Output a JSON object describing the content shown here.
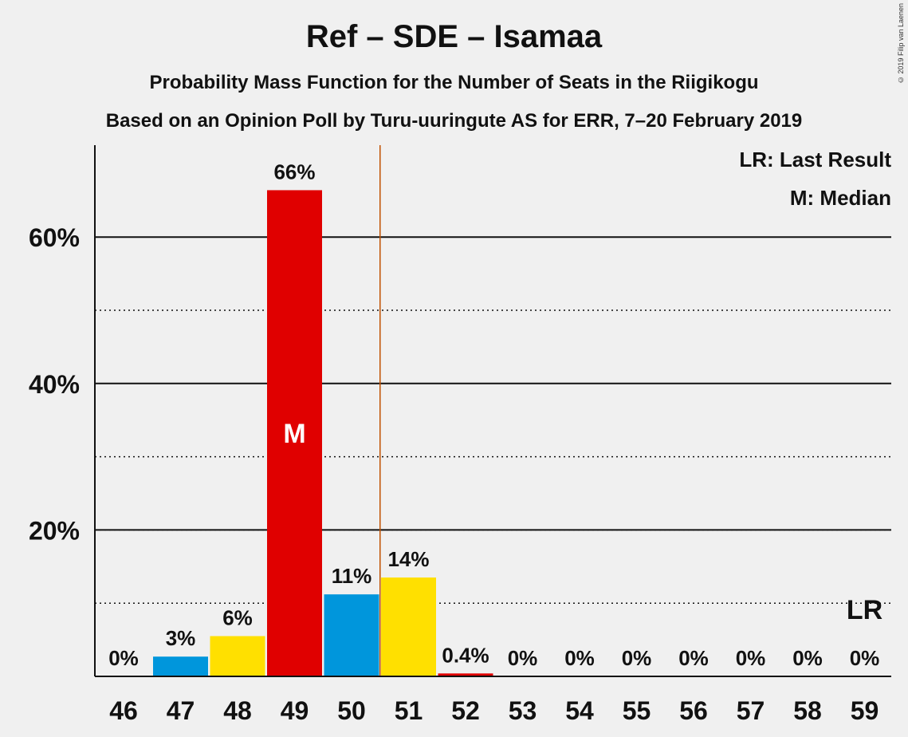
{
  "title": "Ref – SDE – Isamaa",
  "subtitle1": "Probability Mass Function for the Number of Seats in the Riigikogu",
  "subtitle2": "Based on an Opinion Poll by Turu-uuringute AS for ERR, 7–20 February 2019",
  "copyright": "© 2019 Filip van Laenen",
  "legend": {
    "lr": "LR: Last Result",
    "m": "M: Median"
  },
  "marker_labels": {
    "median": "M",
    "last_result": "LR"
  },
  "colors": {
    "red": "#e00000",
    "blue": "#0096dc",
    "yellow": "#ffe000",
    "majority_line": "#c05000"
  },
  "chart_data": {
    "type": "bar",
    "categories": [
      "46",
      "47",
      "48",
      "49",
      "50",
      "51",
      "52",
      "53",
      "54",
      "55",
      "56",
      "57",
      "58",
      "59"
    ],
    "values": [
      0,
      2.7,
      5.5,
      66.4,
      11.2,
      13.5,
      0.4,
      0,
      0,
      0,
      0,
      0,
      0,
      0
    ],
    "labels": [
      "0%",
      "3%",
      "6%",
      "66%",
      "11%",
      "14%",
      "0.4%",
      "0%",
      "0%",
      "0%",
      "0%",
      "0%",
      "0%",
      "0%"
    ],
    "bar_colors": [
      "#e00000",
      "#0096dc",
      "#ffe000",
      "#e00000",
      "#0096dc",
      "#ffe000",
      "#e00000",
      "#0096dc",
      "#ffe000",
      "#e00000",
      "#0096dc",
      "#ffe000",
      "#e00000",
      "#0096dc"
    ],
    "ylim": [
      0,
      72
    ],
    "yticks": [
      20,
      40,
      60
    ],
    "ytick_labels": [
      "20%",
      "40%",
      "60%"
    ],
    "minor_gridlines": [
      10,
      30,
      50
    ],
    "median": "49",
    "last_result": "59",
    "majority_line_between": [
      "50",
      "51"
    ],
    "legend_position": "top-right"
  }
}
